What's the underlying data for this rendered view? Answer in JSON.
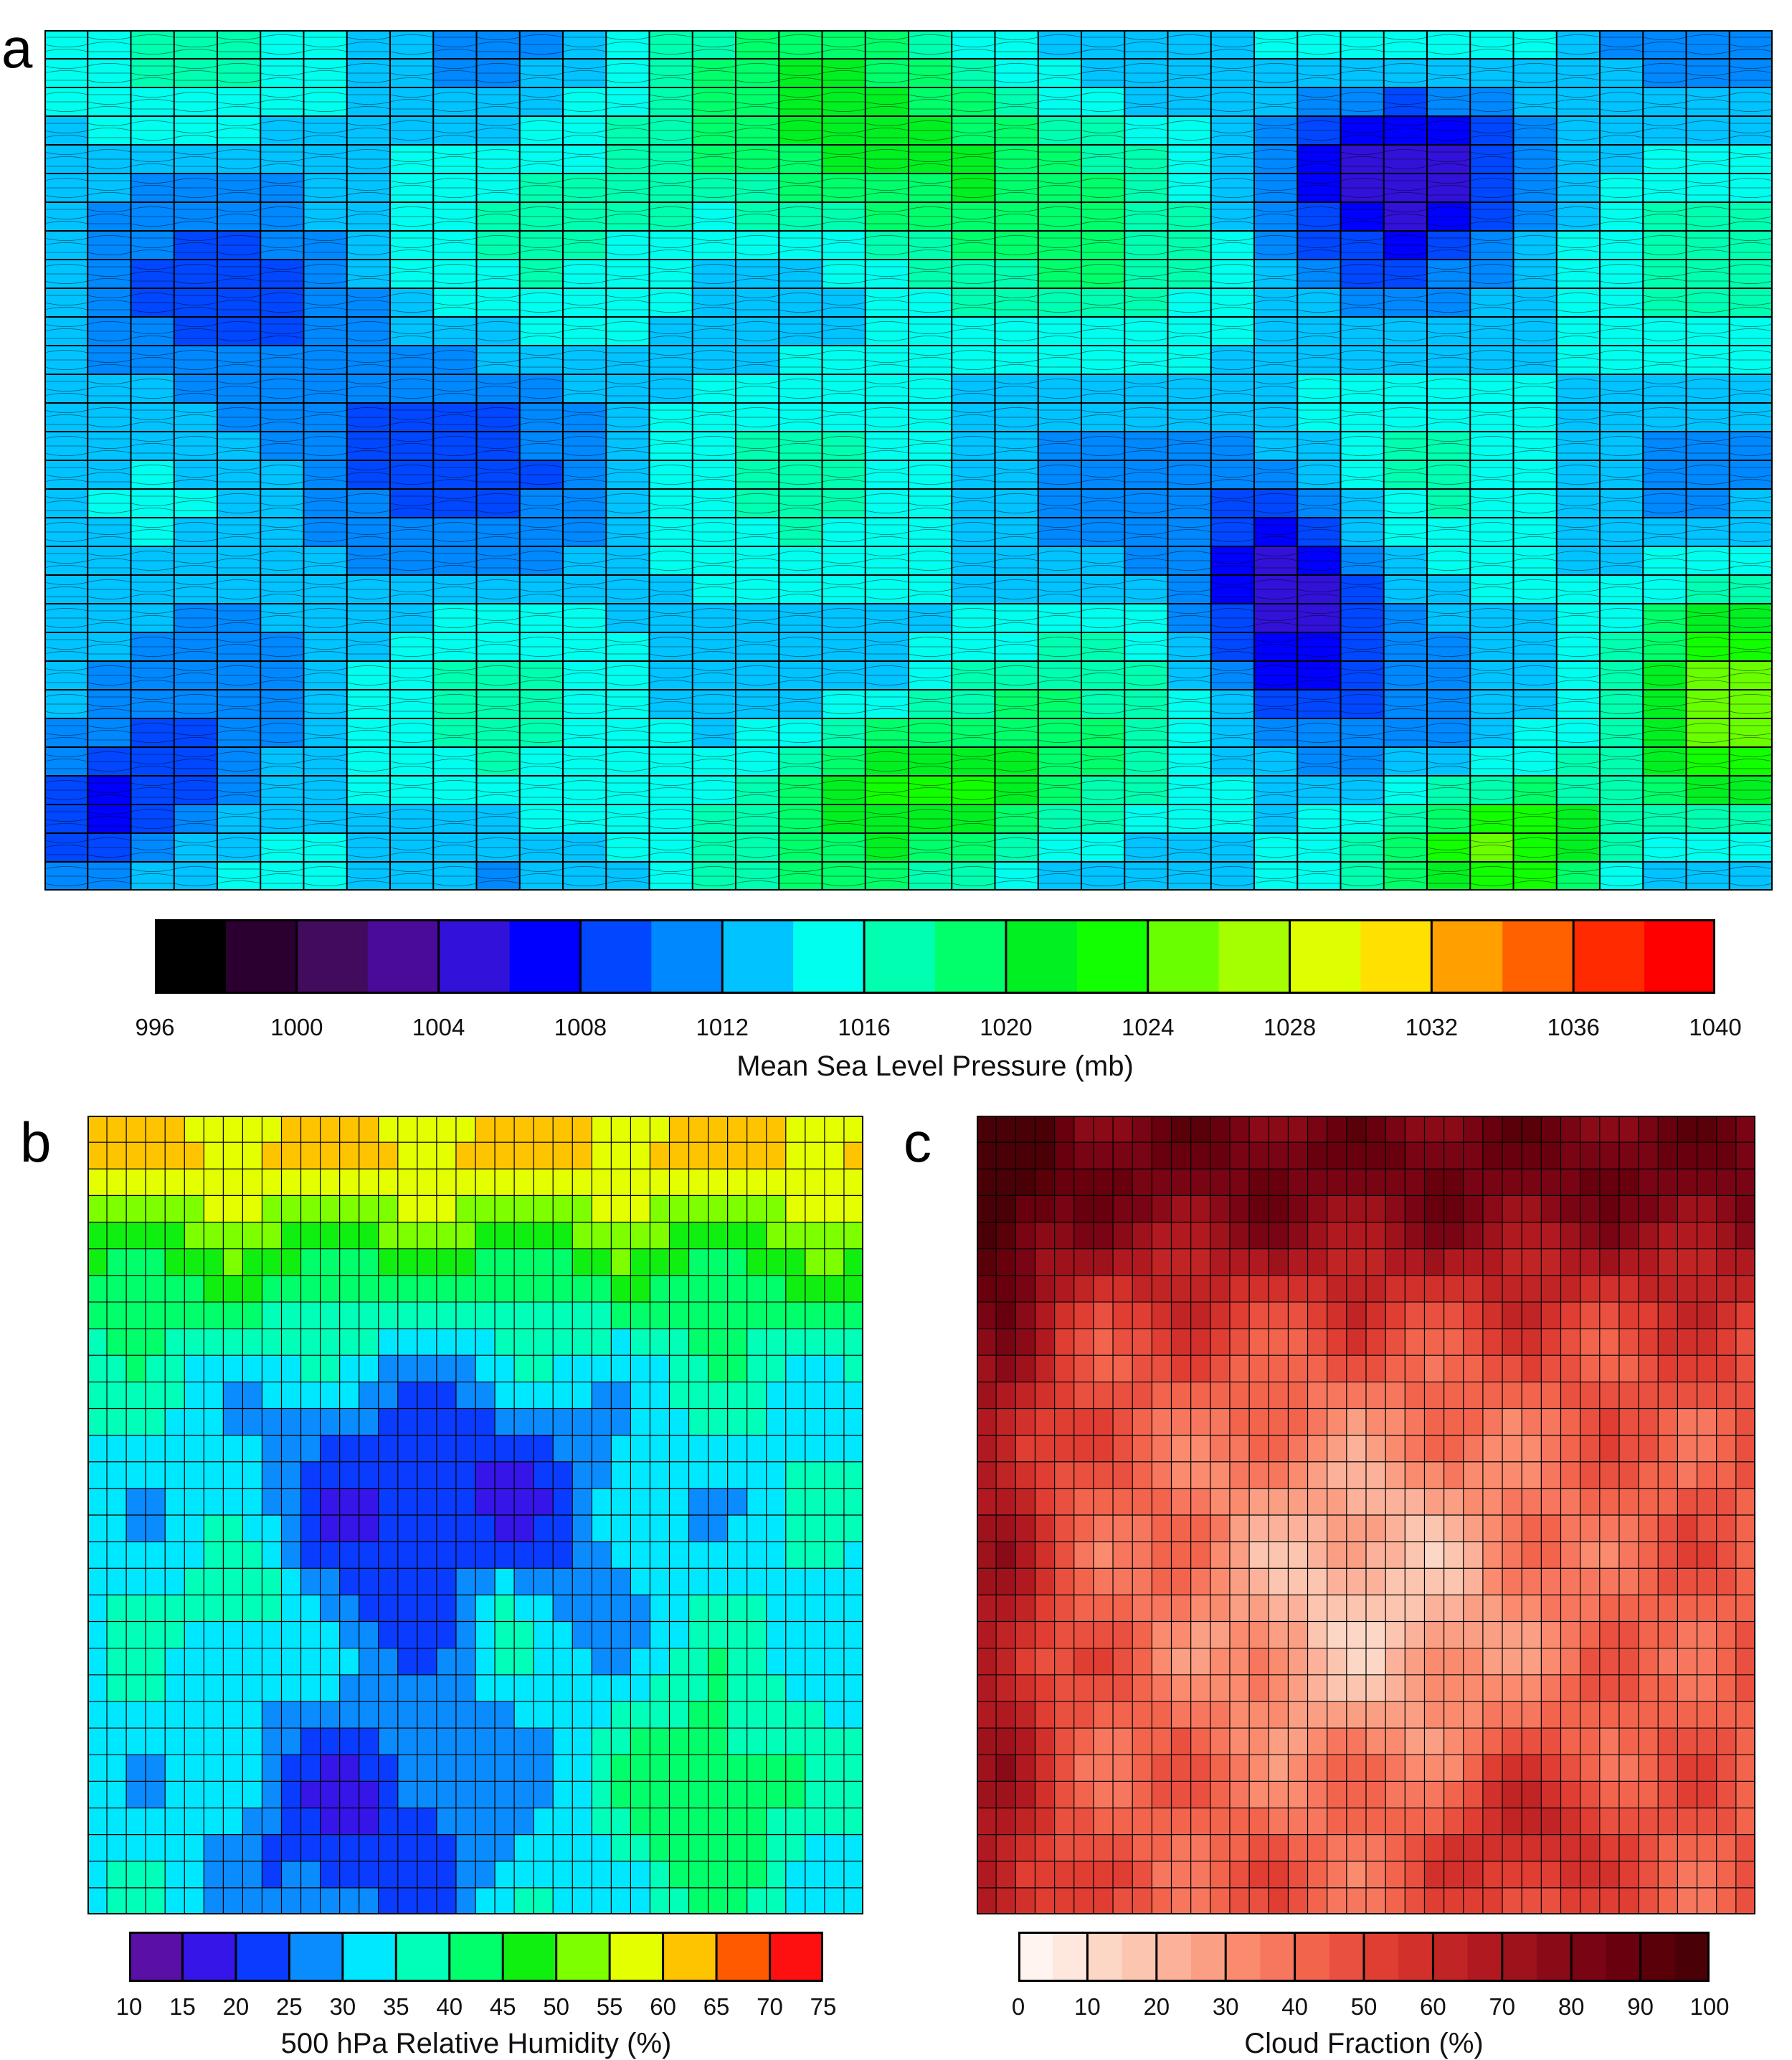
{
  "panels": {
    "a": {
      "letter": "a"
    },
    "b": {
      "letter": "b"
    },
    "c": {
      "letter": "c"
    }
  },
  "chart_data": [
    {
      "id": "a",
      "type": "heatmap",
      "description_type": "grid of small contour maps colored by pressure",
      "colorbar": {
        "label": "Mean Sea Level Pressure (mb)",
        "min": 996,
        "max": 1040,
        "step": 2,
        "tick_labels": [
          "996",
          "1000",
          "1004",
          "1008",
          "1012",
          "1016",
          "1020",
          "1024",
          "1028",
          "1032",
          "1036",
          "1040"
        ],
        "colors": [
          "#000000",
          "#2b0030",
          "#420b5e",
          "#4a0a9a",
          "#3211d8",
          "#0000ff",
          "#0047ff",
          "#0088ff",
          "#00c3ff",
          "#00ffee",
          "#00ffb0",
          "#00ff6a",
          "#00f022",
          "#11ff00",
          "#6aff00",
          "#a6ff00",
          "#ddff00",
          "#ffe000",
          "#ffa000",
          "#ff6000",
          "#ff2a00",
          "#ff0000"
        ]
      },
      "grid": {
        "cols": 40,
        "rows": 30
      },
      "grid_lines": true
    },
    {
      "id": "b",
      "type": "heatmap",
      "colorbar": {
        "label": "500 hPa Relative Humidity (%)",
        "min": 10,
        "max": 75,
        "step": 5,
        "tick_labels": [
          "10",
          "15",
          "20",
          "25",
          "30",
          "35",
          "40",
          "45",
          "50",
          "55",
          "60",
          "65",
          "70",
          "75"
        ],
        "colors": [
          "#5a0fa6",
          "#3515e8",
          "#0a3cff",
          "#0a8cff",
          "#00e8ff",
          "#00ffb8",
          "#00ff6a",
          "#10f010",
          "#7eff00",
          "#e4ff00",
          "#ffc400",
          "#ff5a00",
          "#ff1010"
        ]
      },
      "grid": {
        "cols": 40,
        "rows": 30
      },
      "grid_lines": true
    },
    {
      "id": "c",
      "type": "heatmap",
      "colorbar": {
        "label": "Cloud Fraction (%)",
        "min": 0,
        "max": 100,
        "step": 5,
        "tick_labels": [
          "0",
          "10",
          "20",
          "30",
          "40",
          "50",
          "60",
          "70",
          "80",
          "90",
          "100"
        ],
        "colors": [
          "#fff4ef",
          "#fee7dd",
          "#fdd7c6",
          "#fcc5b0",
          "#fcb29a",
          "#fb9f84",
          "#fb8b6e",
          "#f7775e",
          "#f3644d",
          "#ea503f",
          "#e03d33",
          "#d2302b",
          "#c02424",
          "#b0191f",
          "#9e121c",
          "#8a0a18",
          "#780414",
          "#69000d",
          "#5a0009",
          "#4a0007"
        ]
      },
      "grid": {
        "cols": 40,
        "rows": 30
      },
      "grid_lines": true
    }
  ]
}
